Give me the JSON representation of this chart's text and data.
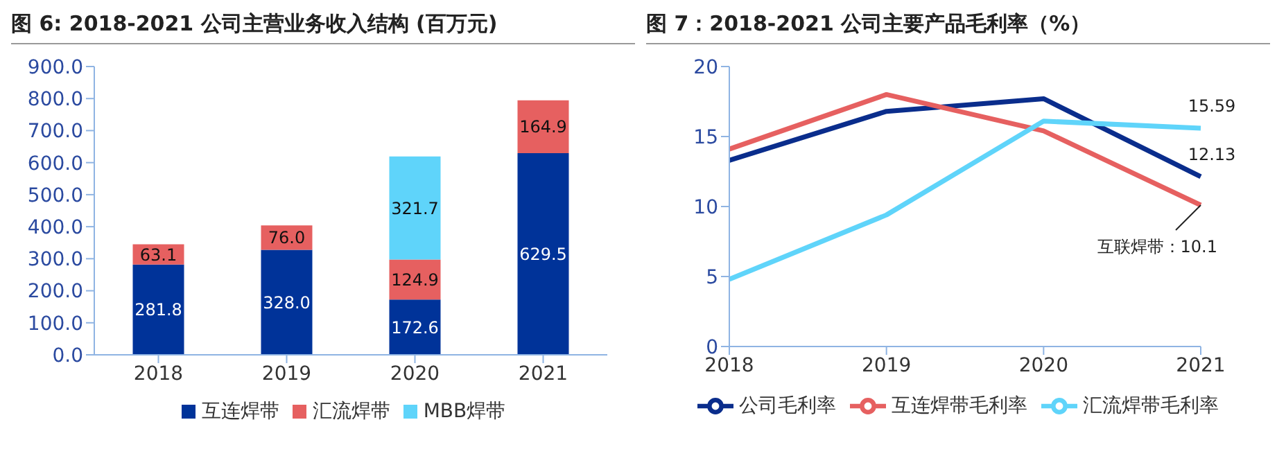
{
  "chart_data": [
    {
      "type": "bar",
      "title": "图 6: 2018-2021 公司主营业务收入结构 (百万元)",
      "categories": [
        "2018",
        "2019",
        "2020",
        "2021"
      ],
      "stacked": true,
      "series": [
        {
          "name": "互连焊带",
          "color": "#003399",
          "values": [
            281.8,
            328.0,
            172.6,
            629.5
          ],
          "value_labels": [
            "281.8",
            "328.0",
            "172.6",
            "629.5"
          ]
        },
        {
          "name": "汇流焊带",
          "color": "#e66060",
          "values": [
            63.1,
            76.0,
            124.9,
            164.9
          ],
          "value_labels": [
            "63.1",
            "76.0",
            "124.9",
            "164.9"
          ]
        },
        {
          "name": "MBB焊带",
          "color": "#5fd4fa",
          "values": [
            null,
            null,
            321.7,
            null
          ],
          "value_labels": [
            null,
            null,
            "321.7",
            null
          ]
        }
      ],
      "ylim": [
        0,
        900
      ],
      "yticks": [
        {
          "value": 0,
          "label": "0.0"
        },
        {
          "value": 100,
          "label": "100.0"
        },
        {
          "value": 200,
          "label": "200.0"
        },
        {
          "value": 300,
          "label": "300.0"
        },
        {
          "value": 400,
          "label": "400.0"
        },
        {
          "value": 500,
          "label": "500.0"
        },
        {
          "value": 600,
          "label": "600.0"
        },
        {
          "value": 700,
          "label": "700.0"
        },
        {
          "value": 800,
          "label": "800.0"
        },
        {
          "value": 900,
          "label": "900.0"
        }
      ],
      "grid": false,
      "legend": "bottom"
    },
    {
      "type": "line",
      "title": "图 7：2018-2021 公司主要产品毛利率（%）",
      "categories": [
        "2018",
        "2019",
        "2020",
        "2021"
      ],
      "series": [
        {
          "name": "公司毛利率",
          "color": "#0a2d8c",
          "values": [
            13.3,
            16.8,
            17.7,
            12.13
          ],
          "value_labels": [
            null,
            null,
            null,
            "12.13"
          ]
        },
        {
          "name": "互连焊带毛利率",
          "color": "#e66060",
          "values": [
            14.1,
            18.0,
            15.4,
            10.1
          ]
        },
        {
          "name": "汇流焊带毛利率",
          "color": "#5fd4fa",
          "values": [
            4.8,
            9.4,
            16.1,
            15.59
          ],
          "value_labels": [
            null,
            null,
            null,
            "15.59"
          ]
        }
      ],
      "annotations": [
        {
          "text": "互联焊带：10.1",
          "x": "2021",
          "y": 10.1
        }
      ],
      "ylim": [
        0,
        20
      ],
      "yticks": [
        0,
        5,
        10,
        15,
        20
      ],
      "grid": false,
      "legend": "bottom",
      "marker": "none",
      "line_style": "solid"
    }
  ]
}
